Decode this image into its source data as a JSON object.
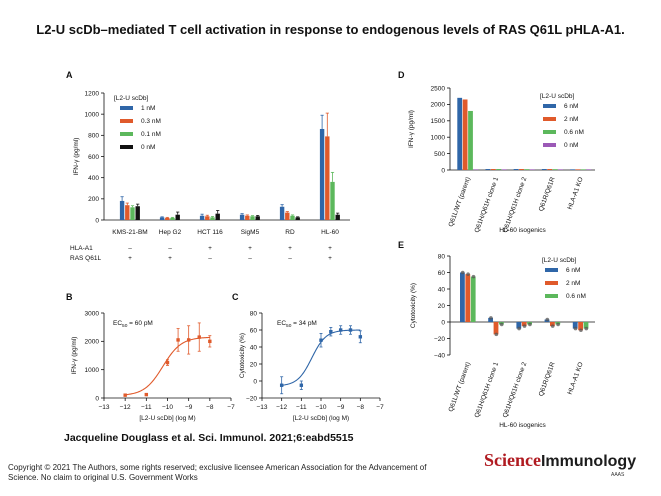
{
  "page": {
    "title": "L2-U scDb–mediated T cell activation in response to endogenous levels of RAS Q61L pHLA-A1.",
    "citation": "Jacqueline Douglass et al. Sci. Immunol. 2021;6:eabd5515",
    "copyright": "Copyright © 2021 The Authors, some rights reserved; exclusive licensee American Association for the Advancement of Science. No claim to original U.S. Government Works",
    "logo_main": "Science",
    "logo_sub": "Immunology",
    "logo_small": "AAAS"
  },
  "chart_data": [
    {
      "panel": "A",
      "type": "bar",
      "ylabel": "IFN-γ (pg/ml)",
      "ylim": [
        0,
        1200
      ],
      "yticks": [
        0,
        200,
        400,
        600,
        800,
        1000,
        1200
      ],
      "legend_title": "[L2-U scDb]",
      "categories": [
        "KMS-21-BM",
        "Hep G2",
        "HCT 116",
        "SigM5",
        "RD",
        "HL-60"
      ],
      "row_labels": [
        "HLA-A1",
        "RAS Q61L"
      ],
      "rows": [
        [
          "–",
          "–",
          "+",
          "+",
          "+",
          "+"
        ],
        [
          "+",
          "+",
          "–",
          "–",
          "–",
          "+"
        ]
      ],
      "series": [
        {
          "name": "1 nM",
          "color": "#2f66a8",
          "values": [
            180,
            25,
            40,
            50,
            125,
            860
          ],
          "err": [
            40,
            5,
            15,
            10,
            20,
            130
          ]
        },
        {
          "name": "0.3 nM",
          "color": "#e05a2b",
          "values": [
            140,
            20,
            35,
            40,
            70,
            790
          ],
          "err": [
            20,
            5,
            10,
            8,
            10,
            220
          ]
        },
        {
          "name": "0.1 nM",
          "color": "#5cb85c",
          "values": [
            120,
            20,
            25,
            35,
            40,
            360
          ],
          "err": [
            15,
            5,
            8,
            6,
            8,
            90
          ]
        },
        {
          "name": "0 nM",
          "color": "#111111",
          "values": [
            130,
            50,
            60,
            35,
            25,
            50
          ],
          "err": [
            20,
            25,
            30,
            8,
            5,
            15
          ]
        }
      ]
    },
    {
      "panel": "B",
      "type": "scatter",
      "ylabel": "IFN-γ (pg/ml)",
      "xlabel": "[L2-U scDb] (log M)",
      "annotation": "EC50 = 60 pM",
      "ann_main": "EC",
      "ann_sub": "50",
      "ann_rest": " = 60 pM",
      "xlim": [
        -13,
        -7
      ],
      "ylim": [
        0,
        3000
      ],
      "xticks": [
        -13,
        -12,
        -11,
        -10,
        -9,
        -8,
        -7
      ],
      "xtick_labels": [
        "−13",
        "−12",
        "−11",
        "−10",
        "−9",
        "−8",
        "−7"
      ],
      "yticks": [
        0,
        1000,
        2000,
        3000
      ],
      "color": "#e05a2b",
      "x": [
        -12,
        -11,
        -10,
        -9.5,
        -9,
        -8.5,
        -8
      ],
      "y": [
        100,
        120,
        1250,
        2050,
        2050,
        2150,
        2000
      ],
      "err": [
        20,
        20,
        100,
        400,
        500,
        500,
        200
      ],
      "fit": {
        "bottom": 80,
        "top": 2150,
        "logec50": -10.22,
        "hill": 1.0
      }
    },
    {
      "panel": "C",
      "type": "scatter",
      "ylabel": "Cytotoxicity (%)",
      "xlabel": "[L2-U scDb] (log M)",
      "annotation": "EC50 = 34 pM",
      "ann_main": "EC",
      "ann_sub": "50",
      "ann_rest": " = 34 pM",
      "xlim": [
        -13,
        -7
      ],
      "ylim": [
        -20,
        80
      ],
      "xticks": [
        -13,
        -12,
        -11,
        -10,
        -9,
        -8,
        -7
      ],
      "xtick_labels": [
        "−13",
        "−12",
        "−11",
        "−10",
        "−9",
        "−8",
        "−7"
      ],
      "yticks": [
        -20,
        0,
        20,
        40,
        60,
        80
      ],
      "ytick_labels": [
        "−20",
        "0",
        "20",
        "40",
        "60",
        "80"
      ],
      "color": "#2f66a8",
      "x": [
        -12,
        -11,
        -10,
        -9.5,
        -9,
        -8.5,
        -8
      ],
      "y": [
        -5,
        -5,
        48,
        58,
        60,
        60,
        52
      ],
      "err": [
        10,
        5,
        8,
        5,
        5,
        5,
        7
      ],
      "fit": {
        "bottom": -6,
        "top": 60,
        "logec50": -10.47,
        "hill": 1.2
      }
    },
    {
      "panel": "D",
      "type": "bar",
      "ylabel": "IFN-γ (pg/ml)",
      "xlabel": "HL-60 isogenics",
      "ylim": [
        0,
        2500
      ],
      "yticks": [
        0,
        500,
        1000,
        1500,
        2000,
        2500
      ],
      "legend_title": "[L2-U scDb]",
      "categories": [
        "Q61L/WT (parent)",
        "Q61H/Q61H clone 1",
        "Q61H/Q61H clone 2",
        "Q61R/Q61R",
        "HLA-A1 KO"
      ],
      "series": [
        {
          "name": "6 nM",
          "color": "#2f66a8",
          "values": [
            2200,
            30,
            30,
            30,
            20
          ]
        },
        {
          "name": "2 nM",
          "color": "#e05a2b",
          "values": [
            2150,
            30,
            30,
            30,
            20
          ]
        },
        {
          "name": "0.6 nM",
          "color": "#5cb85c",
          "values": [
            1800,
            30,
            25,
            25,
            20
          ]
        },
        {
          "name": "0 nM",
          "color": "#9b59b6",
          "values": [
            20,
            20,
            20,
            20,
            20
          ]
        }
      ]
    },
    {
      "panel": "E",
      "type": "bar",
      "ylabel": "Cytotoxicity (%)",
      "xlabel": "HL-60 isogenics",
      "ylim": [
        -40,
        80
      ],
      "yticks": [
        -40,
        -20,
        0,
        20,
        40,
        60,
        80
      ],
      "ytick_labels": [
        "−40",
        "−20",
        "0",
        "20",
        "40",
        "60",
        "80"
      ],
      "legend_title": "[L2-U scDb]",
      "categories": [
        "Q61L/WT (parent)",
        "Q61H/Q61H clone 1",
        "Q61H/Q61H clone 2",
        "Q61R/Q61R",
        "HLA-A1 KO"
      ],
      "series": [
        {
          "name": "6 nM",
          "color": "#2f66a8",
          "values": [
            60,
            5,
            -8,
            3,
            -8
          ]
        },
        {
          "name": "2 nM",
          "color": "#e05a2b",
          "values": [
            58,
            -15,
            -5,
            -5,
            -10
          ]
        },
        {
          "name": "0.6 nM",
          "color": "#5cb85c",
          "values": [
            55,
            -3,
            -3,
            -3,
            -8
          ]
        }
      ]
    }
  ]
}
